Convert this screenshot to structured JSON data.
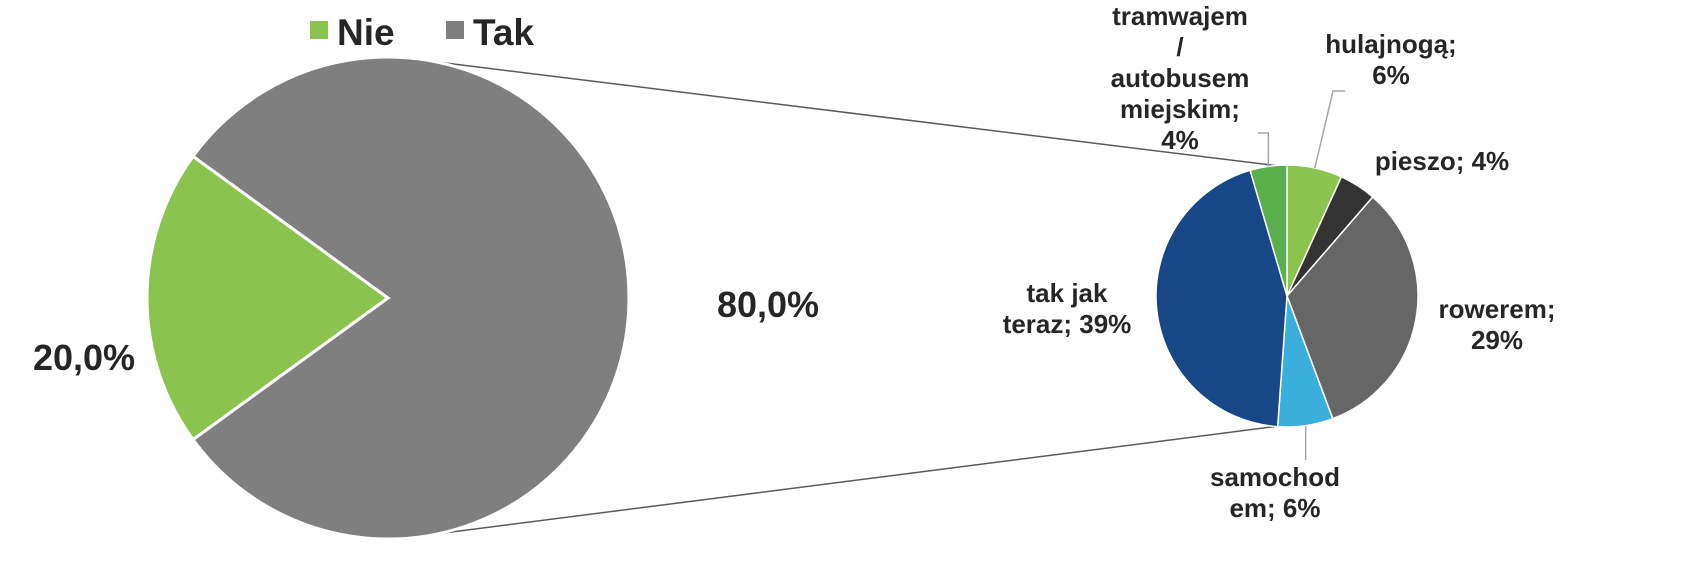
{
  "chart_data": [
    {
      "type": "pie",
      "categories": [
        "Nie",
        "Tak"
      ],
      "values": [
        20.0,
        80.0
      ],
      "data_labels": [
        "20,0%",
        "80,0%"
      ],
      "colors": [
        "#8BC34F",
        "#7F7F7F"
      ],
      "legend": {
        "placement": "top-left",
        "entries": [
          {
            "label": "Nie",
            "color": "#8BC34F"
          },
          {
            "label": "Tak",
            "color": "#7F7F7F"
          }
        ]
      },
      "exploded_slice": "Tak"
    },
    {
      "type": "pie",
      "subset_of": "Tak",
      "categories": [
        "hulajnogą",
        "pieszo",
        "rowerem",
        "samochodem",
        "tak jak teraz",
        "tramwajem / autobusem miejskim"
      ],
      "values": [
        6,
        4,
        29,
        6,
        39,
        4
      ],
      "label_lines": [
        [
          "hulajnogą;",
          "6%"
        ],
        [
          "pieszo; 4%"
        ],
        [
          "rowerem;",
          "29%"
        ],
        [
          "samochod",
          "em; 6%"
        ],
        [
          "tak jak",
          "teraz; 39%"
        ],
        [
          "tramwajem",
          "/",
          "autobusem",
          "miejskim;",
          "4%"
        ]
      ],
      "colors": [
        "#8BC34F",
        "#333333",
        "#666666",
        "#3AAEDC",
        "#174786",
        "#5BAE4C"
      ]
    }
  ]
}
